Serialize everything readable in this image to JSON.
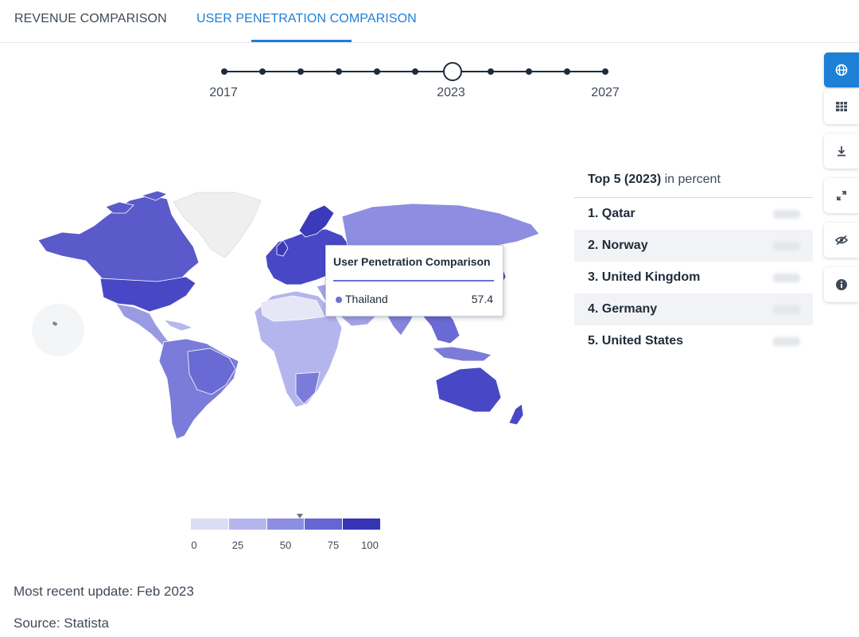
{
  "tabs": [
    {
      "label": "REVENUE COMPARISON",
      "active": false
    },
    {
      "label": "USER PENETRATION COMPARISON",
      "active": true
    }
  ],
  "timeline": {
    "labels": [
      {
        "year": "2017"
      },
      {
        "year": "2023"
      },
      {
        "year": "2027"
      }
    ],
    "years": [
      2017,
      2018,
      2019,
      2020,
      2021,
      2022,
      2023,
      2024,
      2025,
      2026,
      2027
    ],
    "selected_year": 2023
  },
  "tooltip": {
    "title": "User Penetration Comparison",
    "country": "Thailand",
    "value": "57.4",
    "dot_color": "#6b6fd6"
  },
  "legend": {
    "ticks": [
      {
        "label": "0",
        "value": 0
      },
      {
        "label": "25",
        "value": 25
      },
      {
        "label": "50",
        "value": 50
      },
      {
        "label": "75",
        "value": 75
      },
      {
        "label": "100",
        "value": 100
      }
    ],
    "colors": [
      "#dcdcf7",
      "#b5b5ee",
      "#8d8de2",
      "#6565d3",
      "#3535b6"
    ],
    "marker_value": 57.4
  },
  "top5": {
    "title_bold": "Top 5 (2023)",
    "title_rest": " in percent",
    "items": [
      {
        "name": "1. Qatar"
      },
      {
        "name": "2. Norway"
      },
      {
        "name": "3. United Kingdom"
      },
      {
        "name": "4. Germany"
      },
      {
        "name": "5. United States"
      }
    ]
  },
  "toolbar": [
    {
      "icon": "globe-icon",
      "active": true
    },
    {
      "icon": "table-icon",
      "active": false
    },
    {
      "icon": "download-icon",
      "active": false
    },
    {
      "icon": "fullscreen-icon",
      "active": false
    },
    {
      "icon": "hide-icon",
      "active": false
    },
    {
      "icon": "info-icon",
      "active": false
    }
  ],
  "footer": {
    "update": "Most recent update: Feb 2023",
    "source": "Source: Statista"
  },
  "colors": {
    "accent": "#1e7fd6",
    "region_high": "#4848c6",
    "region_mid": "#7b7bd9",
    "region_low": "#a9a9e8",
    "region_nodata": "#efefef"
  }
}
